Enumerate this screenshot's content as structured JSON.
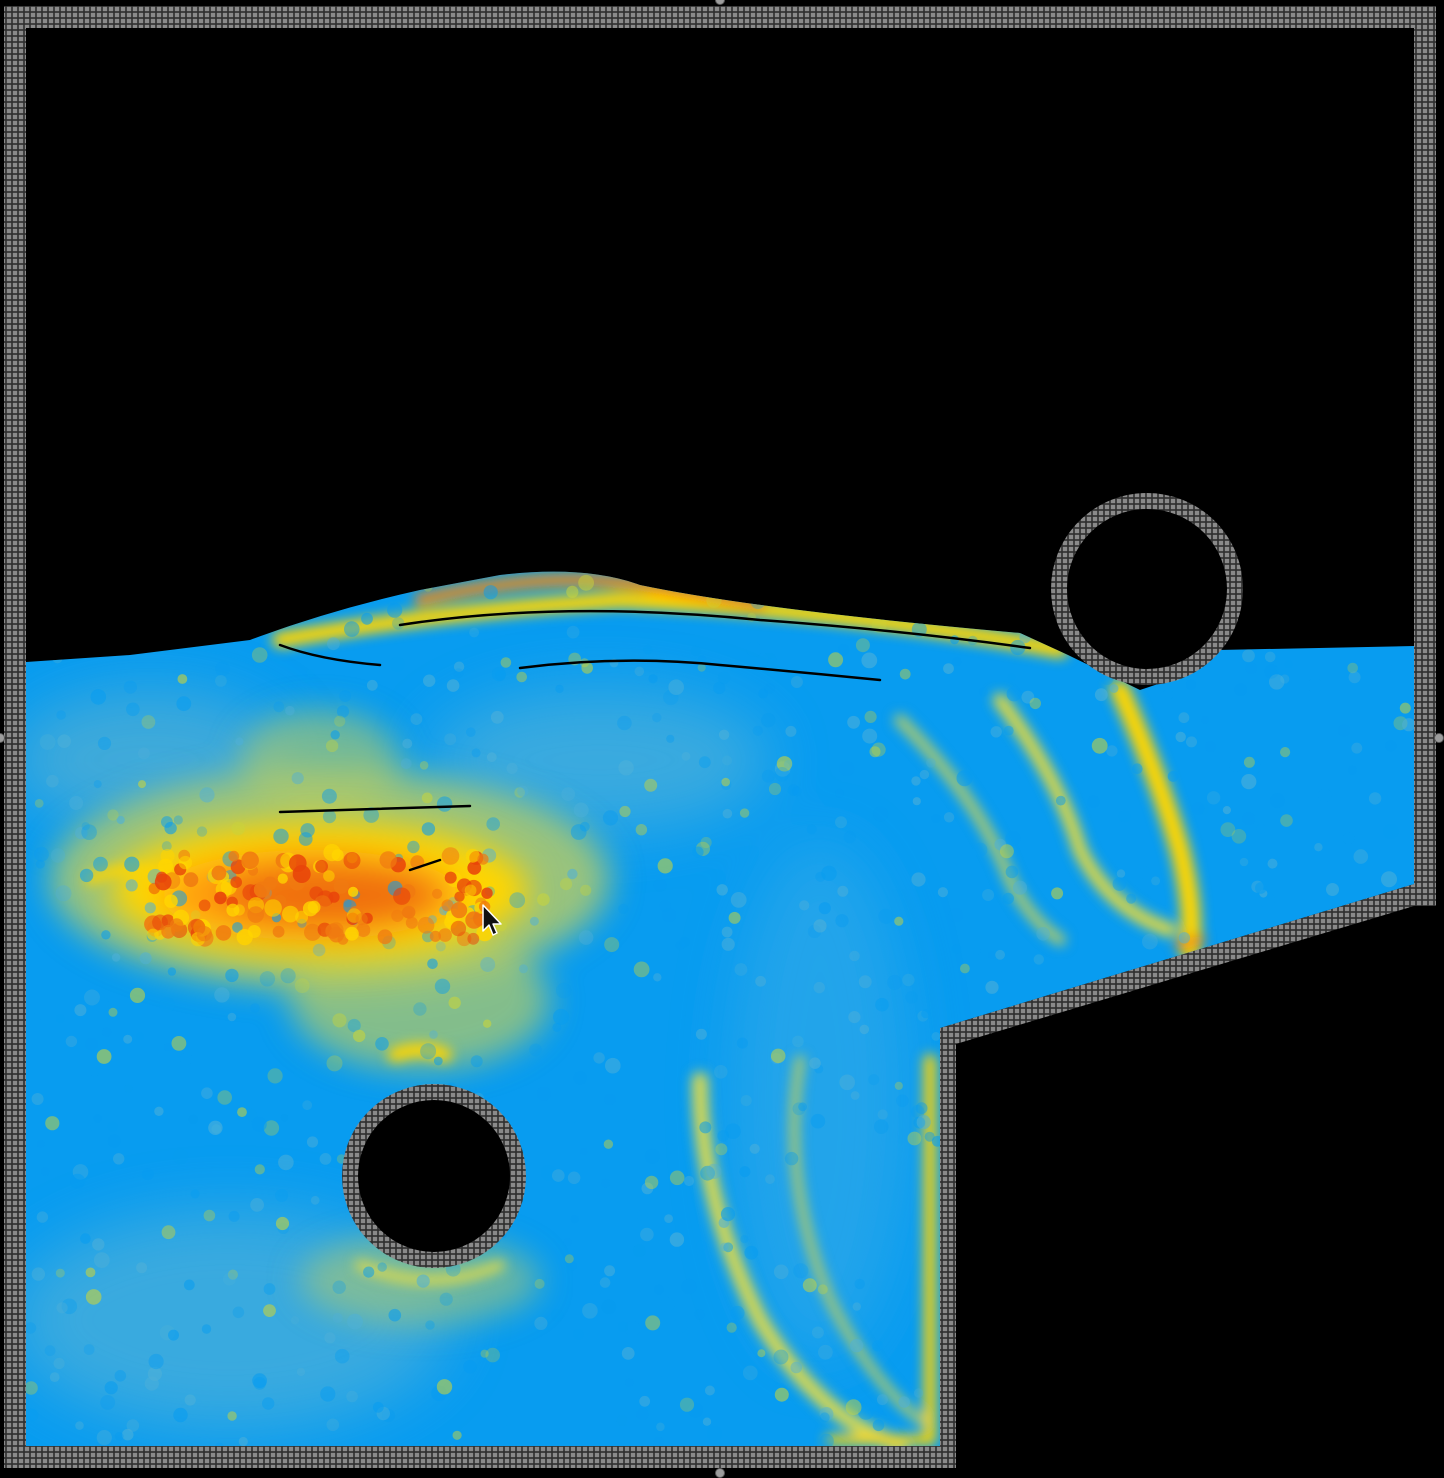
{
  "simulation": {
    "type": "particle-fluid",
    "background_color": "#000000",
    "wall_color": "#8a8a8a",
    "wall_grid_color": "#2e2e2e",
    "colormap": {
      "low": "#089cf0",
      "mid_low": "#4fb0d8",
      "mid": "#c8d43a",
      "mid_high": "#ffd500",
      "high": "#f07a10",
      "max": "#e8440a"
    },
    "obstacles": [
      {
        "shape": "circle",
        "name": "lower-left-circle-obstacle"
      },
      {
        "shape": "circle",
        "name": "upper-right-circle-obstacle"
      }
    ]
  },
  "cursor": {
    "icon": "arrow-pointer-icon"
  }
}
